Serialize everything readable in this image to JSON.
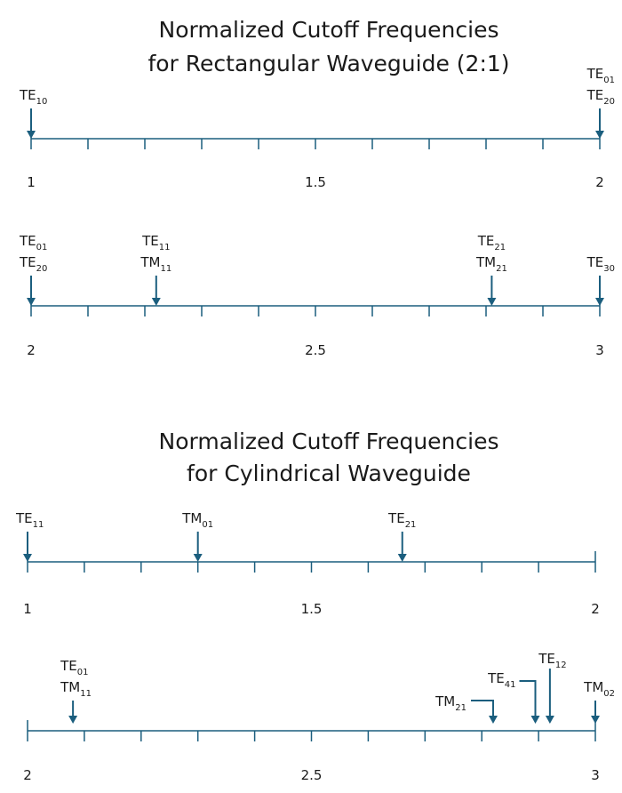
{
  "colors": {
    "accent": "#1b5e7e",
    "text": "#1a1a1a",
    "background": "#ffffff"
  },
  "rectangular": {
    "title_line1": "Normalized Cutoff Frequencies",
    "title_line2": "for Rectangular Waveguide (2:1)",
    "axis1": {
      "ticks": [
        "1",
        "1.5",
        "2"
      ],
      "markers": [
        {
          "value": 1.0,
          "labels": [
            {
              "base": "TE",
              "sub": "10"
            }
          ]
        },
        {
          "value": 2.0,
          "labels": [
            {
              "base": "TE",
              "sub": "01"
            },
            {
              "base": "TE",
              "sub": "20"
            }
          ]
        }
      ]
    },
    "axis2": {
      "ticks": [
        "2",
        "2.5",
        "3"
      ],
      "markers": [
        {
          "value": 2.0,
          "labels": [
            {
              "base": "TE",
              "sub": "01"
            },
            {
              "base": "TE",
              "sub": "20"
            }
          ]
        },
        {
          "value": 2.22,
          "labels": [
            {
              "base": "TE",
              "sub": "11"
            },
            {
              "base": "TM",
              "sub": "11"
            }
          ]
        },
        {
          "value": 2.81,
          "labels": [
            {
              "base": "TE",
              "sub": "21"
            },
            {
              "base": "TM",
              "sub": "21"
            }
          ]
        },
        {
          "value": 3.0,
          "labels": [
            {
              "base": "TE",
              "sub": "30"
            }
          ]
        }
      ]
    }
  },
  "cylindrical": {
    "title_line1": "Normalized Cutoff Frequencies",
    "title_line2": "for Cylindrical Waveguide",
    "axis1": {
      "ticks": [
        "1",
        "1.5",
        "2"
      ],
      "markers": [
        {
          "value": 1.0,
          "labels": [
            {
              "base": "TE",
              "sub": "11"
            }
          ]
        },
        {
          "value": 1.3,
          "labels": [
            {
              "base": "TM",
              "sub": "01"
            }
          ]
        },
        {
          "value": 1.66,
          "labels": [
            {
              "base": "TE",
              "sub": "21"
            }
          ]
        }
      ]
    },
    "axis2": {
      "ticks": [
        "2",
        "2.5",
        "3"
      ],
      "markers": [
        {
          "value": 2.08,
          "labels": [
            {
              "base": "TE",
              "sub": "01"
            },
            {
              "base": "TM",
              "sub": "11"
            }
          ]
        },
        {
          "value": 2.82,
          "labels": [
            {
              "base": "TM",
              "sub": "21"
            }
          ]
        },
        {
          "value": 2.91,
          "labels": [
            {
              "base": "TE",
              "sub": "41"
            }
          ]
        },
        {
          "value": 2.92,
          "labels": [
            {
              "base": "TE",
              "sub": "12"
            }
          ]
        },
        {
          "value": 3.0,
          "labels": [
            {
              "base": "TM",
              "sub": "02"
            }
          ]
        }
      ]
    }
  }
}
